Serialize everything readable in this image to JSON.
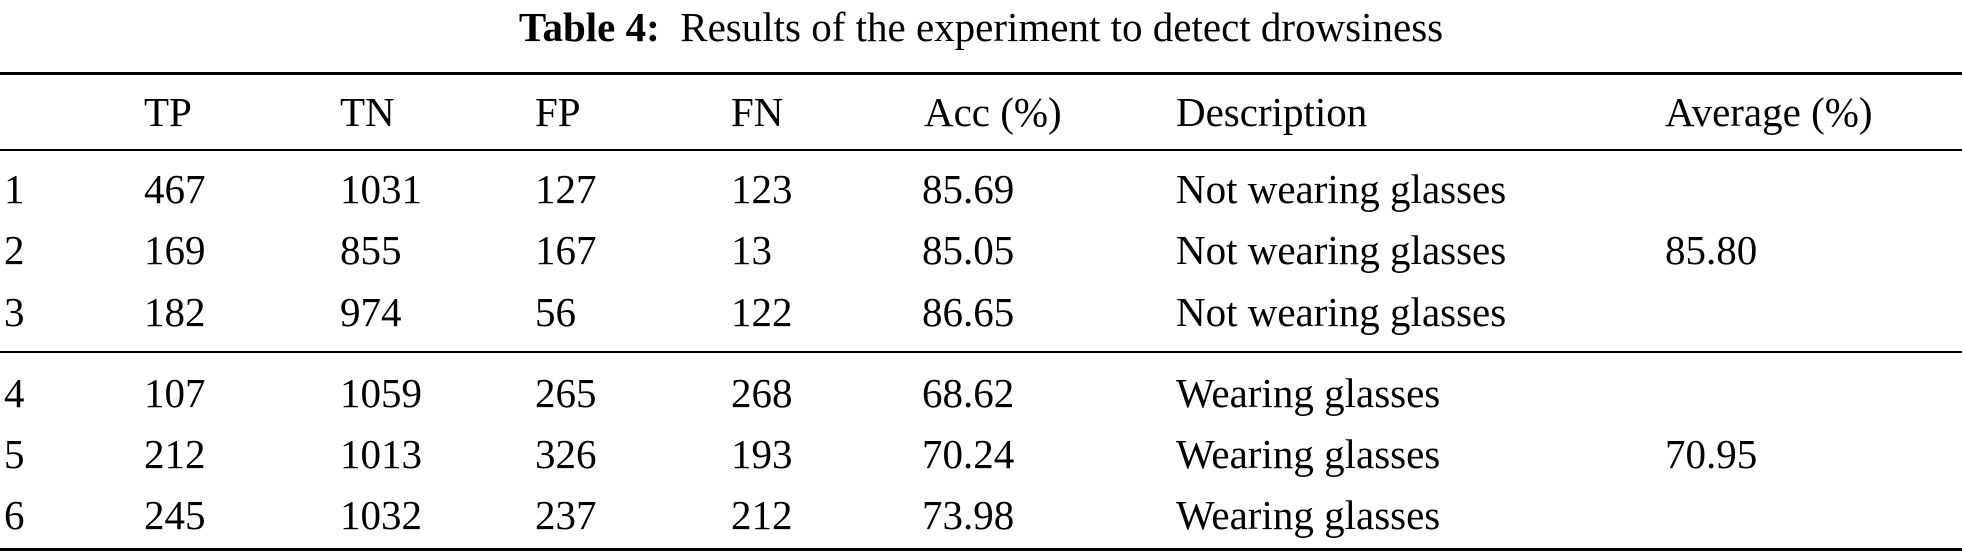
{
  "table": {
    "caption_label": "Table 4:",
    "caption_text": "Results of the experiment to detect drowsiness",
    "headers": [
      "",
      "TP",
      "TN",
      "FP",
      "FN",
      "Acc (%)",
      "Description",
      "Average (%)"
    ],
    "groups": [
      {
        "average": "85.80",
        "rows": [
          [
            "1",
            "467",
            "1031",
            "127",
            "123",
            "85.69",
            "Not wearing glasses"
          ],
          [
            "2",
            "169",
            "855",
            "167",
            "13",
            "85.05",
            "Not wearing glasses"
          ],
          [
            "3",
            "182",
            "974",
            "56",
            "122",
            "86.65",
            "Not wearing glasses"
          ]
        ]
      },
      {
        "average": "70.95",
        "rows": [
          [
            "4",
            "107",
            "1059",
            "265",
            "268",
            "68.62",
            "Wearing glasses"
          ],
          [
            "5",
            "212",
            "1013",
            "326",
            "193",
            "70.24",
            "Wearing glasses"
          ],
          [
            "6",
            "245",
            "1032",
            "237",
            "212",
            "73.98",
            "Wearing glasses"
          ]
        ]
      }
    ]
  }
}
